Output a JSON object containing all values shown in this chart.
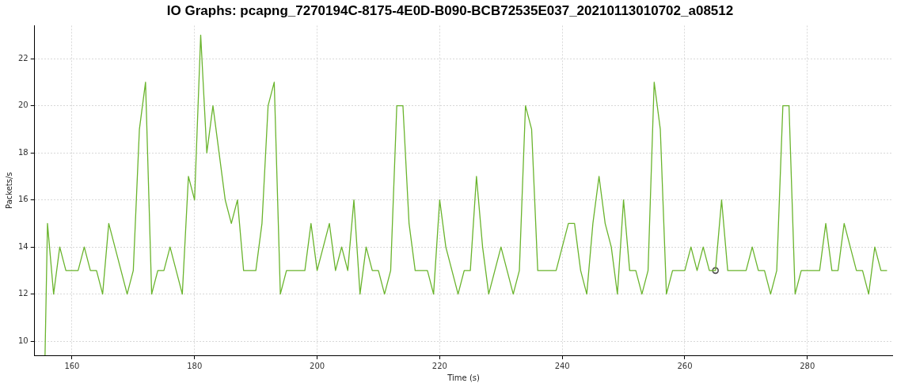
{
  "chart_data": {
    "type": "line",
    "title": "IO Graphs: pcapng_7270194C-8175-4E0D-B090-BCB72535E037_20210113010702_a08512",
    "xlabel": "Time (s)",
    "ylabel": "Packets/s",
    "xlim": [
      153.9,
      293.9
    ],
    "ylim": [
      9.4,
      23.4
    ],
    "xticks": [
      160,
      180,
      200,
      220,
      240,
      260,
      280
    ],
    "yticks": [
      10,
      12,
      14,
      16,
      18,
      20,
      22
    ],
    "grid": true,
    "legend": false,
    "marker": "none",
    "line_style": "solid",
    "series": [
      {
        "color": "#6ab42d",
        "x": [
          155.6,
          156,
          157,
          158,
          159,
          160,
          161,
          162,
          163,
          164,
          165,
          166,
          167,
          168,
          169,
          170,
          171,
          172,
          173,
          174,
          175,
          176,
          177,
          178,
          179,
          180,
          181,
          182,
          183,
          184,
          185,
          186,
          187,
          188,
          189,
          190,
          191,
          192,
          193,
          194,
          195,
          196,
          197,
          198,
          199,
          200,
          201,
          202,
          203,
          204,
          205,
          206,
          207,
          208,
          209,
          210,
          211,
          212,
          213,
          214,
          215,
          216,
          217,
          218,
          219,
          220,
          221,
          222,
          223,
          224,
          225,
          226,
          227,
          228,
          229,
          230,
          231,
          232,
          233,
          234,
          235,
          236,
          237,
          238,
          239,
          240,
          241,
          242,
          243,
          244,
          245,
          246,
          247,
          248,
          249,
          250,
          251,
          252,
          253,
          254,
          255,
          256,
          257,
          258,
          259,
          260,
          261,
          262,
          263,
          264,
          265,
          266,
          267,
          268,
          269,
          270,
          271,
          272,
          273,
          274,
          275,
          276,
          277,
          278,
          279,
          280,
          281,
          282,
          283,
          284,
          285,
          286,
          287,
          288,
          289,
          290,
          291,
          292,
          293
        ],
        "values": [
          9.4,
          15,
          12,
          14,
          13,
          13,
          13,
          14,
          13,
          13,
          12,
          15,
          14,
          13,
          12,
          13,
          19,
          21,
          12,
          13,
          13,
          14,
          13,
          12,
          17,
          16,
          23,
          18,
          20,
          18,
          16,
          15,
          16,
          13,
          13,
          13,
          15,
          20,
          21,
          12,
          13,
          13,
          13,
          13,
          15,
          13,
          14,
          15,
          13,
          14,
          13,
          16,
          12,
          14,
          13,
          13,
          12,
          13,
          20,
          20,
          15,
          13,
          13,
          13,
          12,
          16,
          14,
          13,
          12,
          13,
          13,
          17,
          14,
          12,
          13,
          14,
          13,
          12,
          13,
          20,
          19,
          13,
          13,
          13,
          13,
          14,
          15,
          15,
          13,
          12,
          15,
          17,
          15,
          14,
          12,
          16,
          13,
          13,
          12,
          13,
          21,
          19,
          12,
          13,
          13,
          13,
          14,
          13,
          14,
          13,
          13,
          16,
          13,
          13,
          13,
          13,
          14,
          13,
          13,
          12,
          13,
          20,
          20,
          12,
          13,
          13,
          13,
          13,
          15,
          13,
          13,
          15,
          14,
          13,
          13,
          12,
          14,
          13,
          13
        ]
      },
      {
        "type": "scatter",
        "color": "#505050",
        "marker": "circle",
        "x": [
          265
        ],
        "values": [
          13
        ]
      }
    ]
  }
}
